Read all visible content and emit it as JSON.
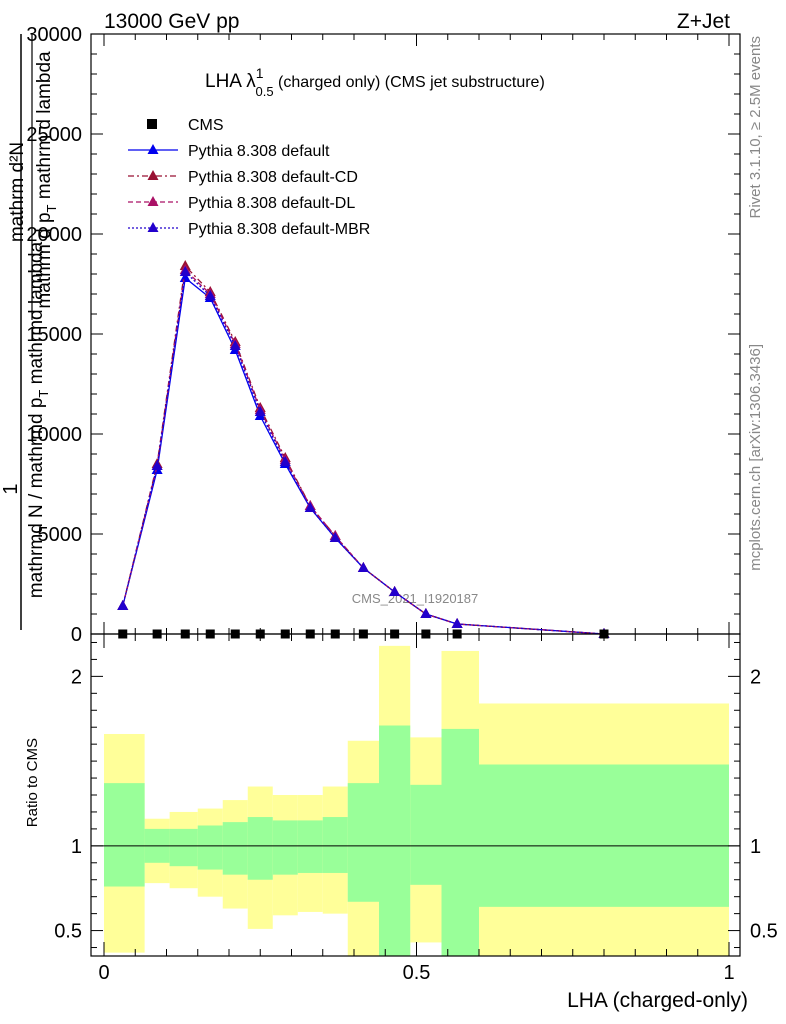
{
  "header": {
    "left": "13000 GeV pp",
    "right": "Z+Jet"
  },
  "side": {
    "rivet": "Rivet 3.1.10, ≥ 2.5M events",
    "mcplots": "mcplots.cern.ch [arXiv:1306.3436]"
  },
  "watermark": "CMS_2021_I1920187",
  "chart_data": [
    {
      "type": "line",
      "title": {
        "prefix": "LHA λ",
        "sup": "1",
        "sub": "0.5",
        "suffix": " (charged only) (CMS jet substructure)"
      },
      "ylabel": {
        "num": "1",
        "den": "mathrmd N / mathrmd p",
        "den_sub": "T",
        "den2": " mathrmd lambda",
        "line1": "mathrm d²N",
        "line2": "mathrm d p",
        "line2_sub": "T",
        "line2_tail": " mathrm d lambda"
      },
      "xlim": [
        0,
        1
      ],
      "ylim": [
        0,
        30000
      ],
      "y_ticks": [
        {
          "value": 0,
          "label": "0"
        },
        {
          "value": 5000,
          "label": "5000"
        },
        {
          "value": 10000,
          "label": "10000"
        },
        {
          "value": 15000,
          "label": "15000"
        },
        {
          "value": 20000,
          "label": "20000"
        },
        {
          "value": 25000,
          "label": "25000"
        },
        {
          "value": 30000,
          "label": "30000"
        }
      ],
      "legend": [
        "CMS",
        "Pythia 8.308 default",
        "Pythia 8.308 default-CD",
        "Pythia 8.308 default-DL",
        "Pythia 8.308 default-MBR"
      ],
      "x": [
        0.03,
        0.085,
        0.13,
        0.17,
        0.21,
        0.25,
        0.29,
        0.33,
        0.37,
        0.415,
        0.465,
        0.515,
        0.565,
        0.8
      ],
      "cms_values": [
        0,
        0,
        0,
        0,
        0,
        0,
        0,
        0,
        0,
        0,
        0,
        0,
        0,
        0
      ],
      "series": [
        {
          "name": "Pythia 8.308 default",
          "color": "#0000ee",
          "dash": "",
          "values": [
            1400,
            8200,
            17800,
            16800,
            14200,
            10900,
            8500,
            6300,
            4800,
            3300,
            2100,
            1000,
            500,
            0
          ]
        },
        {
          "name": "Pythia 8.308 default-CD",
          "color": "#991133",
          "dash": "6,3,2,3",
          "values": [
            1400,
            8500,
            18400,
            17100,
            14600,
            11300,
            8800,
            6400,
            4900,
            3300,
            2100,
            1000,
            500,
            0
          ]
        },
        {
          "name": "Pythia 8.308 default-DL",
          "color": "#aa1166",
          "dash": "5,3",
          "values": [
            1400,
            8400,
            18200,
            17000,
            14500,
            11200,
            8700,
            6400,
            4900,
            3300,
            2100,
            1000,
            500,
            0
          ]
        },
        {
          "name": "Pythia 8.308 default-MBR",
          "color": "#2200cc",
          "dash": "2,2",
          "values": [
            1400,
            8400,
            18100,
            16900,
            14400,
            11100,
            8600,
            6300,
            4800,
            3300,
            2100,
            1000,
            500,
            0
          ]
        }
      ]
    },
    {
      "type": "area",
      "ylabel": "Ratio to CMS",
      "xlabel": "LHA (charged-only)",
      "xlim": [
        0,
        1
      ],
      "ylim": [
        0.35,
        2.25
      ],
      "x_ticks": [
        {
          "value": 0,
          "label": "0"
        },
        {
          "value": 0.5,
          "label": "0.5"
        },
        {
          "value": 1,
          "label": "1"
        }
      ],
      "y_ticks": [
        {
          "value": 0.5,
          "label": "0.5"
        },
        {
          "value": 1,
          "label": "1"
        },
        {
          "value": 2,
          "label": "2"
        }
      ],
      "bin_edges": [
        0,
        0.065,
        0.105,
        0.15,
        0.19,
        0.23,
        0.27,
        0.31,
        0.35,
        0.39,
        0.44,
        0.49,
        0.54,
        0.6,
        1.0
      ],
      "bands": {
        "total": {
          "color": "#ffff99",
          "lo": [
            0.37,
            0.78,
            0.75,
            0.7,
            0.63,
            0.51,
            0.59,
            0.61,
            0.6,
            0.35,
            0.35,
            0.43,
            0.35,
            0.35
          ],
          "hi": [
            1.66,
            1.16,
            1.2,
            1.22,
            1.27,
            1.35,
            1.3,
            1.3,
            1.35,
            1.62,
            2.18,
            1.64,
            2.15,
            1.84
          ]
        },
        "stat": {
          "color": "#99ff99",
          "lo": [
            0.76,
            0.9,
            0.88,
            0.86,
            0.83,
            0.8,
            0.83,
            0.84,
            0.84,
            0.67,
            0.35,
            0.77,
            0.35,
            0.64
          ],
          "hi": [
            1.37,
            1.1,
            1.1,
            1.12,
            1.14,
            1.17,
            1.15,
            1.15,
            1.17,
            1.37,
            1.71,
            1.36,
            1.69,
            1.48
          ]
        }
      },
      "reference": 1
    }
  ]
}
